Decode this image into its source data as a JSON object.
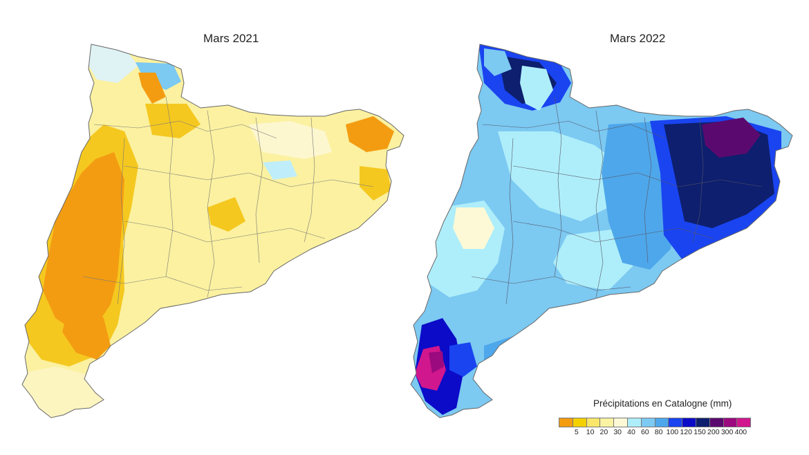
{
  "maps": [
    {
      "title": "Mars 2021"
    },
    {
      "title": "Mars 2022"
    }
  ],
  "legend": {
    "title": "Précipitations en Catalogne (mm)",
    "tick_labels": [
      "5",
      "10",
      "20",
      "30",
      "40",
      "60",
      "80",
      "100",
      "120",
      "150",
      "200",
      "300",
      "400"
    ],
    "colors": [
      "#f39c12",
      "#f5d000",
      "#f8e76a",
      "#fbf3a4",
      "#fdf9d6",
      "#aeeefa",
      "#7cc9f2",
      "#4ea7ea",
      "#1a44f0",
      "#0b0bc8",
      "#0d1f6e",
      "#5a0a6e",
      "#9b0a7e",
      "#d1178d"
    ]
  }
}
